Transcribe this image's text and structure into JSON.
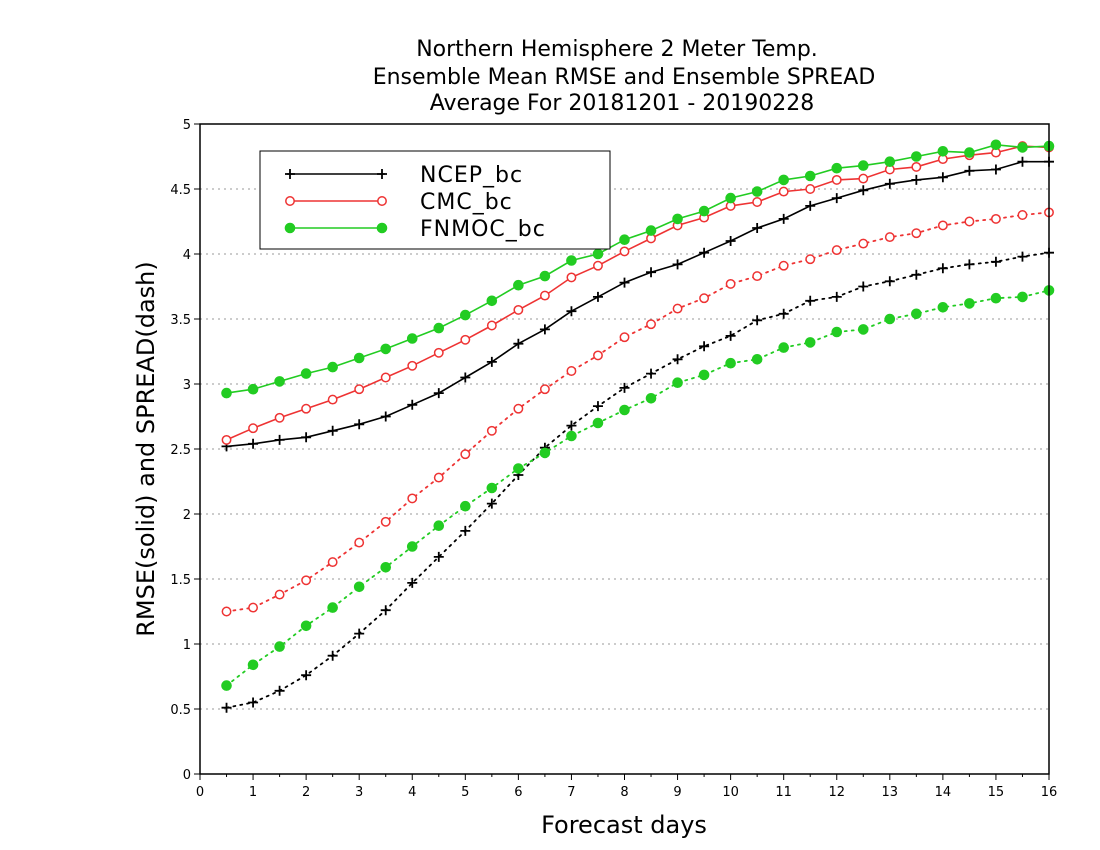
{
  "chart_data": {
    "type": "line",
    "title_lines": [
      "Northern Hemisphere 2 Meter Temp.",
      "Ensemble Mean RMSE and Ensemble SPREAD",
      "Average For 20181201 - 20190228"
    ],
    "xlabel": "Forecast days",
    "ylabel": "RMSE(solid) and SPREAD(dash)",
    "xlim": [
      0,
      16
    ],
    "ylim": [
      0,
      5
    ],
    "xticks": [
      0,
      1,
      2,
      3,
      4,
      5,
      6,
      7,
      8,
      9,
      10,
      11,
      12,
      13,
      14,
      15,
      16
    ],
    "yticks": [
      0,
      0.5,
      1,
      1.5,
      2,
      2.5,
      3,
      3.5,
      4,
      4.5,
      5
    ],
    "ytick_labels": [
      "0",
      "0.5",
      "1",
      "1.5",
      "2",
      "2.5",
      "3",
      "3.5",
      "4",
      "4.5",
      "5"
    ],
    "grid": "horizontal-dotted",
    "legend_position": "top-left",
    "x": [
      0.5,
      1,
      1.5,
      2,
      2.5,
      3,
      3.5,
      4,
      4.5,
      5,
      5.5,
      6,
      6.5,
      7,
      7.5,
      8,
      8.5,
      9,
      9.5,
      10,
      10.5,
      11,
      11.5,
      12,
      12.5,
      13,
      13.5,
      14,
      14.5,
      15,
      15.5,
      16
    ],
    "series": [
      {
        "name": "NCEP_bc",
        "color": "#000000",
        "marker": "plus",
        "rmse": [
          2.52,
          2.54,
          2.57,
          2.59,
          2.64,
          2.69,
          2.75,
          2.84,
          2.93,
          3.05,
          3.17,
          3.31,
          3.42,
          3.56,
          3.67,
          3.78,
          3.86,
          3.92,
          4.01,
          4.1,
          4.2,
          4.27,
          4.37,
          4.43,
          4.49,
          4.54,
          4.57,
          4.59,
          4.64,
          4.65,
          4.71,
          4.71
        ],
        "spread": [
          0.51,
          0.55,
          0.64,
          0.76,
          0.91,
          1.08,
          1.26,
          1.47,
          1.67,
          1.87,
          2.08,
          2.3,
          2.51,
          2.68,
          2.83,
          2.97,
          3.08,
          3.19,
          3.29,
          3.37,
          3.49,
          3.54,
          3.64,
          3.67,
          3.75,
          3.79,
          3.84,
          3.89,
          3.92,
          3.94,
          3.98,
          4.01
        ]
      },
      {
        "name": "CMC_bc",
        "color": "#ee3333",
        "marker": "open-circle",
        "rmse": [
          2.57,
          2.66,
          2.74,
          2.81,
          2.88,
          2.96,
          3.05,
          3.14,
          3.24,
          3.34,
          3.45,
          3.57,
          3.68,
          3.82,
          3.91,
          4.02,
          4.12,
          4.22,
          4.28,
          4.37,
          4.4,
          4.48,
          4.5,
          4.57,
          4.58,
          4.65,
          4.67,
          4.73,
          4.76,
          4.78,
          4.83,
          4.82
        ],
        "spread": [
          1.25,
          1.28,
          1.38,
          1.49,
          1.63,
          1.78,
          1.94,
          2.12,
          2.28,
          2.46,
          2.64,
          2.81,
          2.96,
          3.1,
          3.22,
          3.36,
          3.46,
          3.58,
          3.66,
          3.77,
          3.83,
          3.91,
          3.96,
          4.03,
          4.08,
          4.13,
          4.16,
          4.22,
          4.25,
          4.27,
          4.3,
          4.32
        ]
      },
      {
        "name": "FNMOC_bc",
        "color": "#22cc22",
        "marker": "filled-circle",
        "rmse": [
          2.93,
          2.96,
          3.02,
          3.08,
          3.13,
          3.2,
          3.27,
          3.35,
          3.43,
          3.53,
          3.64,
          3.76,
          3.83,
          3.95,
          4.0,
          4.11,
          4.18,
          4.27,
          4.33,
          4.43,
          4.48,
          4.57,
          4.6,
          4.66,
          4.68,
          4.71,
          4.75,
          4.79,
          4.78,
          4.84,
          4.82,
          4.83
        ],
        "spread": [
          0.68,
          0.84,
          0.98,
          1.14,
          1.28,
          1.44,
          1.59,
          1.75,
          1.91,
          2.06,
          2.2,
          2.35,
          2.47,
          2.6,
          2.7,
          2.8,
          2.89,
          3.01,
          3.07,
          3.16,
          3.19,
          3.28,
          3.32,
          3.4,
          3.42,
          3.5,
          3.54,
          3.59,
          3.62,
          3.66,
          3.67,
          3.72
        ]
      }
    ]
  }
}
